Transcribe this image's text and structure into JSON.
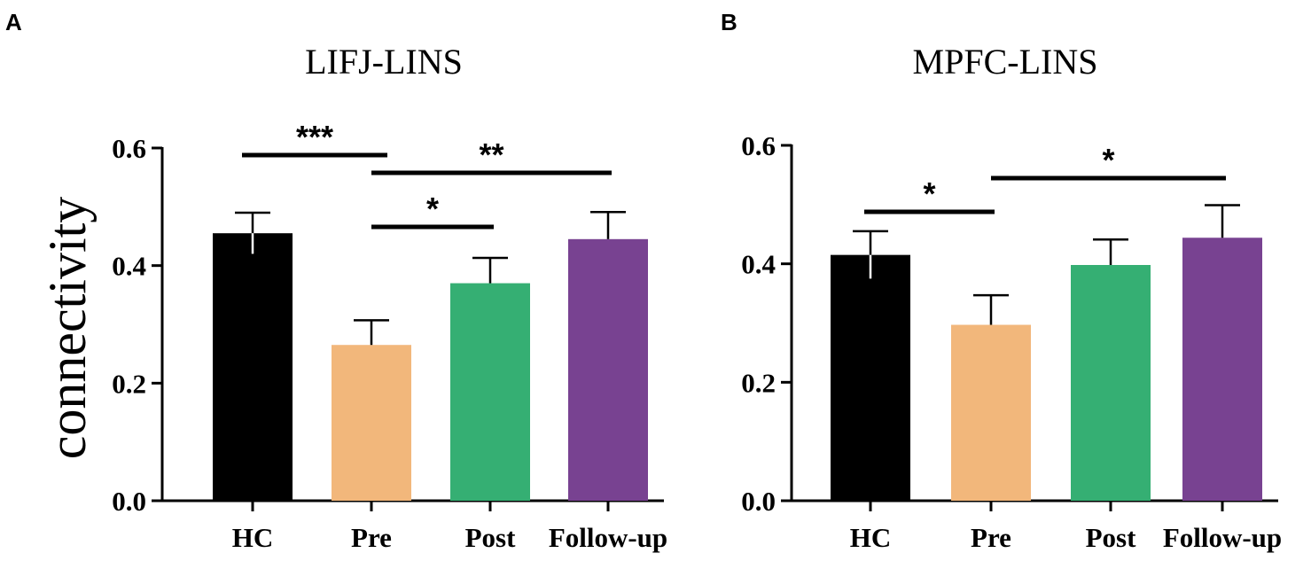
{
  "chart_data": [
    {
      "type": "bar",
      "panel": "A",
      "title": "LIFJ-LINS",
      "ylabel": "connectivity",
      "xlabel": "",
      "ylim": [
        0,
        0.6
      ],
      "yticks": [
        "0.0",
        "0.2",
        "0.4",
        "0.6"
      ],
      "categories": [
        "HC",
        "Pre",
        "Post",
        "Follow-up"
      ],
      "values": [
        0.455,
        0.265,
        0.37,
        0.445
      ],
      "errors": [
        0.035,
        0.042,
        0.043,
        0.046
      ],
      "colors": [
        "#000000",
        "#F2B77B",
        "#35AF73",
        "#784291"
      ],
      "significance": [
        {
          "from": 0,
          "to": 1,
          "label": "***"
        },
        {
          "from": 1,
          "to": 3,
          "label": "**"
        },
        {
          "from": 1,
          "to": 2,
          "label": "*"
        }
      ]
    },
    {
      "type": "bar",
      "panel": "B",
      "title": "MPFC-LINS",
      "ylabel": "",
      "xlabel": "",
      "ylim": [
        0,
        0.6
      ],
      "yticks": [
        "0.0",
        "0.2",
        "0.4",
        "0.6"
      ],
      "categories": [
        "HC",
        "Pre",
        "Post",
        "Follow-up"
      ],
      "values": [
        0.415,
        0.297,
        0.398,
        0.444
      ],
      "errors": [
        0.04,
        0.05,
        0.043,
        0.055
      ],
      "colors": [
        "#000000",
        "#F2B77B",
        "#35AF73",
        "#784291"
      ],
      "significance": [
        {
          "from": 0,
          "to": 1,
          "label": "*"
        },
        {
          "from": 1,
          "to": 3,
          "label": "*"
        }
      ]
    }
  ]
}
